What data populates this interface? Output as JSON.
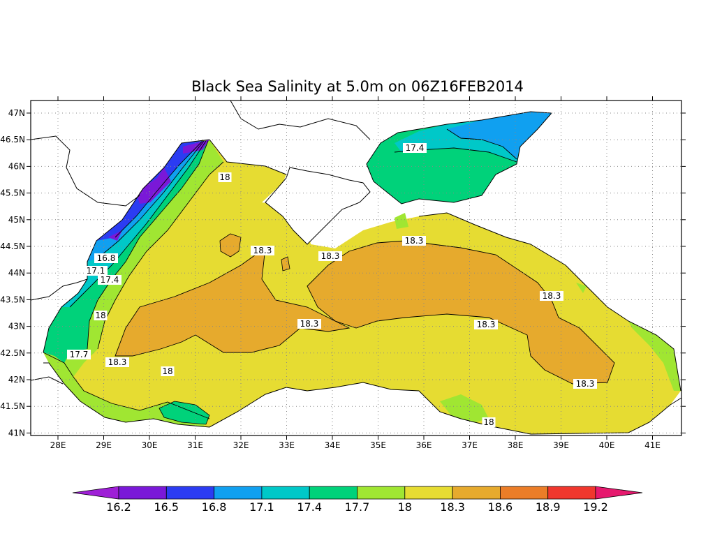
{
  "title": "Black Sea Salinity at 5.0m on 06Z16FEB2014",
  "lon_labels": [
    "28E",
    "29E",
    "30E",
    "31E",
    "32E",
    "33E",
    "34E",
    "35E",
    "36E",
    "37E",
    "38E",
    "39E",
    "40E",
    "41E"
  ],
  "lat_labels": [
    "47N",
    "46.5N",
    "46N",
    "45.5N",
    "45N",
    "44.5N",
    "44N",
    "43.5N",
    "43N",
    "42.5N",
    "42N",
    "41.5N",
    "41N"
  ],
  "colorbar": {
    "levels": [
      "16.2",
      "16.5",
      "16.8",
      "17.1",
      "17.4",
      "17.7",
      "18",
      "18.3",
      "18.6",
      "18.9",
      "19.2"
    ],
    "colors": [
      "#9e1fd6",
      "#7a18d8",
      "#2b3cf2",
      "#10a0f0",
      "#00c8c8",
      "#00d27a",
      "#a0e632",
      "#e6dc32",
      "#e6aa2d",
      "#eb7d28",
      "#f0372d",
      "#e6196e"
    ]
  },
  "contour_labels": [
    "16.8",
    "17.1",
    "17.4",
    "18",
    "18.3",
    "18.3",
    "18.3",
    "18.3",
    "18.3",
    "18.3",
    "18",
    "17.4",
    "18",
    "17.7",
    "18.3",
    "18",
    "18.3",
    "18.3",
    "18"
  ]
}
